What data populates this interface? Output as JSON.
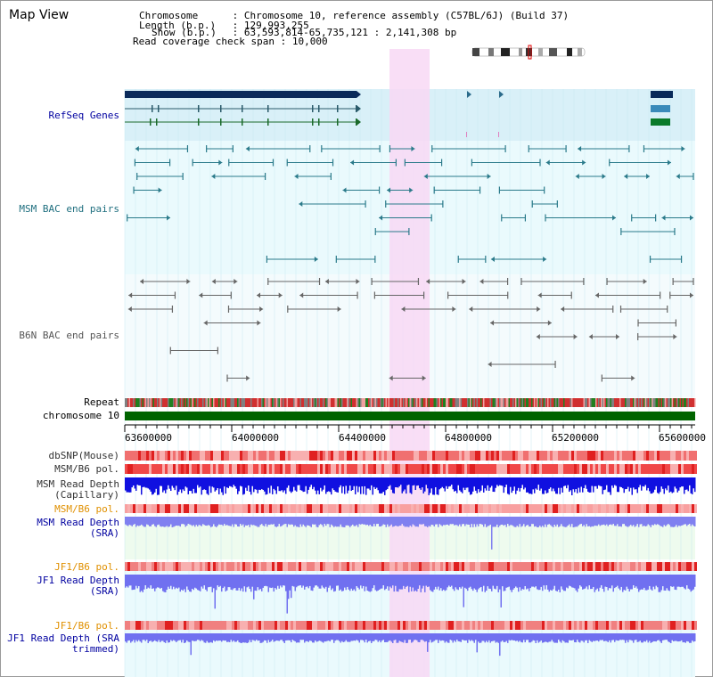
{
  "title": "Map View",
  "info": {
    "lines": [
      {
        "label": "Chromosome",
        "value": "Chromosome 10, reference assembly (C57BL/6J) (Build 37)"
      },
      {
        "label": "Length (b.p.)",
        "value": "129,993,255"
      },
      {
        "label": "Show (b.p.)",
        "value": "63,593,814-65,735,121 : 2,141,308 bp"
      },
      {
        "label": "Read coverage check span",
        "value": "10,000"
      }
    ]
  },
  "colors": {
    "refseq_bg": "#d9f0f8",
    "bac_bg": "#eafafd",
    "highlight": "#f8d8f4",
    "refseq_dark": "#0a2a5a",
    "msm_bac": "#2a7a8a",
    "b6n_bac": "#666666",
    "chromosome": "#006400",
    "depth_blue": "#1010e0",
    "depth_light": "#8080f0",
    "snp_red": "#f06060",
    "label_blue": "#0000a0",
    "label_orange": "#e09000",
    "label_teal": "#1f6f7f"
  },
  "tracks": {
    "refseq": "RefSeq Genes",
    "msm_bac": "MSM BAC end pairs",
    "b6n_bac": "B6N BAC end pairs",
    "repeat": "Repeat",
    "chromosome": "chromosome 10",
    "dbsnp": "dbSNP(Mouse)",
    "msm_b6_pol_1": "MSM/B6 pol.",
    "msm_depth_cap": "MSM Read Depth (Capillary)",
    "msm_b6_pol_2": "MSM/B6 pol.",
    "msm_depth_sra": "MSM Read Depth (SRA)",
    "jf1_b6_pol_1": "JF1/B6 pol.",
    "jf1_depth_sra": "JF1 Read Depth (SRA)",
    "jf1_b6_pol_2": "JF1/B6 pol.",
    "jf1_depth_trim": "JF1 Read Depth (SRA trimmed)"
  },
  "axis": {
    "ticks": [
      "63600000",
      "64000000",
      "64400000",
      "64800000",
      "65200000",
      "65600000"
    ]
  }
}
